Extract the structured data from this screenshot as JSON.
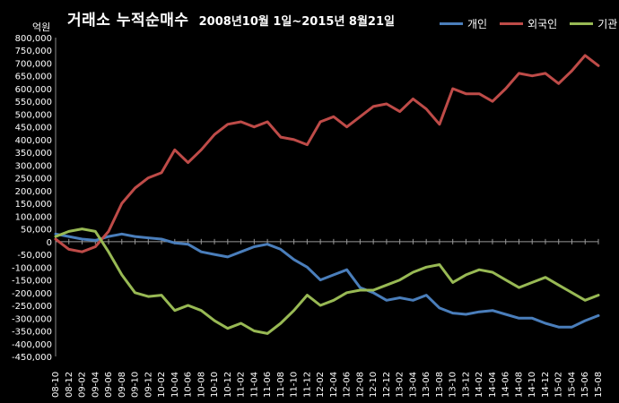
{
  "header": {
    "title": "거래소 누적순매수",
    "subtitle": "2008년10월 1일~2015년 8월21일"
  },
  "colors": {
    "individual": "#4a7ebb",
    "foreign": "#be4b48",
    "institution": "#98b954",
    "background": "#000000",
    "grid": "#000000"
  },
  "chart_data": {
    "type": "line",
    "title": "거래소 누적순매수 2008년10월 1일~2015년 8월21일",
    "ylabel": "억원",
    "xlabel": "",
    "ylim": [
      -450000,
      800000
    ],
    "yticks": [
      800000,
      750000,
      700000,
      650000,
      600000,
      550000,
      500000,
      450000,
      400000,
      350000,
      300000,
      250000,
      200000,
      150000,
      100000,
      50000,
      0,
      -50000,
      -100000,
      -150000,
      -200000,
      -250000,
      -300000,
      -350000,
      -400000,
      -450000
    ],
    "ytick_labels": [
      "800,000",
      "750,000",
      "700,000",
      "650,000",
      "600,000",
      "550,000",
      "500,000",
      "450,000",
      "400,000",
      "350,000",
      "300,000",
      "250,000",
      "200,000",
      "150,000",
      "100,000",
      "50,000",
      "0",
      "-50,000",
      "-100,000",
      "-150,000",
      "-200,000",
      "-250,000",
      "-300,000",
      "-350,000",
      "-400,000",
      "-450,000"
    ],
    "categories": [
      "08-10",
      "08-12",
      "09-02",
      "09-04",
      "09-06",
      "09-08",
      "09-10",
      "09-12",
      "10-02",
      "10-04",
      "10-06",
      "10-08",
      "10-10",
      "10-12",
      "11-02",
      "11-04",
      "11-06",
      "11-08",
      "11-10",
      "11-12",
      "12-02",
      "12-04",
      "12-06",
      "12-08",
      "12-10",
      "12-12",
      "13-02",
      "13-04",
      "13-06",
      "13-08",
      "13-10",
      "13-12",
      "14-02",
      "14-04",
      "14-06",
      "14-08",
      "14-10",
      "14-12",
      "15-02",
      "15-04",
      "15-06",
      "15-08"
    ],
    "legend_position": "top-right",
    "grid": false,
    "series": [
      {
        "name": "개인",
        "color": "#4a7ebb",
        "values": [
          30000,
          20000,
          10000,
          5000,
          20000,
          30000,
          20000,
          15000,
          10000,
          -5000,
          -10000,
          -40000,
          -50000,
          -60000,
          -40000,
          -20000,
          -10000,
          -30000,
          -70000,
          -100000,
          -150000,
          -130000,
          -110000,
          -180000,
          -200000,
          -230000,
          -220000,
          -230000,
          -210000,
          -260000,
          -280000,
          -285000,
          -275000,
          -270000,
          -285000,
          -300000,
          -300000,
          -320000,
          -335000,
          -335000,
          -310000,
          -290000
        ]
      },
      {
        "name": "외국인",
        "color": "#be4b48",
        "values": [
          10000,
          -30000,
          -40000,
          -20000,
          40000,
          150000,
          210000,
          250000,
          270000,
          360000,
          310000,
          360000,
          420000,
          460000,
          470000,
          450000,
          470000,
          410000,
          400000,
          380000,
          470000,
          490000,
          450000,
          490000,
          530000,
          540000,
          510000,
          560000,
          520000,
          460000,
          600000,
          580000,
          580000,
          550000,
          600000,
          660000,
          650000,
          660000,
          620000,
          670000,
          730000,
          690000
        ]
      },
      {
        "name": "기관",
        "color": "#98b954",
        "values": [
          20000,
          40000,
          50000,
          40000,
          -40000,
          -130000,
          -200000,
          -215000,
          -210000,
          -270000,
          -250000,
          -270000,
          -310000,
          -340000,
          -320000,
          -350000,
          -360000,
          -320000,
          -270000,
          -210000,
          -250000,
          -230000,
          -200000,
          -190000,
          -190000,
          -170000,
          -150000,
          -120000,
          -100000,
          -90000,
          -160000,
          -130000,
          -110000,
          -120000,
          -150000,
          -180000,
          -160000,
          -140000,
          -170000,
          -200000,
          -230000,
          -210000
        ]
      }
    ]
  }
}
